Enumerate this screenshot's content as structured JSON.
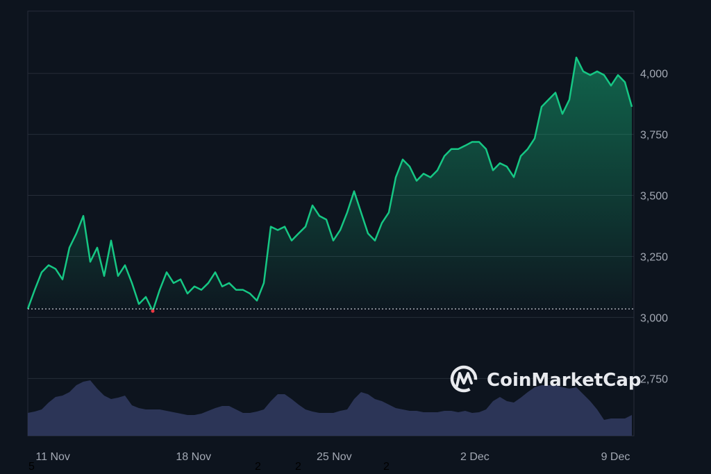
{
  "chart_data": {
    "type": "line",
    "watermark": "CoinMarketCap",
    "xlim": [
      "Nov 9 18:00",
      "Dec 9 22:00"
    ],
    "x_ticks": [
      {
        "label": "11 Nov",
        "day": 11,
        "month": "Nov"
      },
      {
        "label": "18 Nov",
        "day": 18,
        "month": "Nov"
      },
      {
        "label": "25 Nov",
        "day": 25,
        "month": "Nov"
      },
      {
        "label": "2 Dec",
        "day": 2,
        "month": "Dec"
      },
      {
        "label": "9 Dec",
        "day": 9,
        "month": "Dec"
      }
    ],
    "y_ticks": [
      "4,000",
      "3,750",
      "3,500",
      "3,250",
      "3,000",
      "2,750"
    ],
    "y_tick_values": [
      4000,
      3750,
      3500,
      3250,
      3000,
      2750
    ],
    "ylim": [
      2515,
      4255
    ],
    "grid": "horizontal",
    "baseline": 3035,
    "colors": {
      "up": "#16c784",
      "down": "#ea3943",
      "volume": "#2c3557",
      "grid": "#262d39",
      "background": "#0d141e"
    },
    "price": [
      3035,
      3113,
      3185,
      3214,
      3199,
      3156,
      3286,
      3344,
      3416,
      3228,
      3286,
      3170,
      3315,
      3170,
      3214,
      3141,
      3055,
      3084,
      3026,
      3113,
      3185,
      3141,
      3156,
      3098,
      3127,
      3113,
      3141,
      3185,
      3127,
      3141,
      3113,
      3113,
      3098,
      3069,
      3141,
      3372,
      3358,
      3372,
      3315,
      3344,
      3372,
      3459,
      3416,
      3401,
      3315,
      3358,
      3430,
      3517,
      3430,
      3344,
      3315,
      3387,
      3430,
      3574,
      3647,
      3618,
      3560,
      3589,
      3574,
      3603,
      3661,
      3690,
      3690,
      3704,
      3719,
      3719,
      3690,
      3603,
      3632,
      3618,
      3575,
      3661,
      3690,
      3733,
      3863,
      3892,
      3921,
      3834,
      3892,
      4065,
      4008,
      3993,
      4008,
      3993,
      3950,
      3993,
      3964,
      3863
    ],
    "volume_relative": [
      33,
      35,
      38,
      48,
      56,
      58,
      63,
      73,
      78,
      80,
      68,
      58,
      53,
      55,
      58,
      44,
      40,
      38,
      38,
      38,
      36,
      34,
      32,
      30,
      30,
      32,
      36,
      40,
      43,
      43,
      38,
      33,
      33,
      35,
      38,
      50,
      60,
      60,
      53,
      45,
      38,
      35,
      33,
      33,
      33,
      36,
      38,
      53,
      63,
      60,
      53,
      50,
      45,
      40,
      38,
      36,
      36,
      34,
      34,
      34,
      36,
      36,
      34,
      36,
      33,
      34,
      38,
      50,
      56,
      50,
      48,
      55,
      63,
      70,
      73,
      73,
      73,
      70,
      68,
      70,
      60,
      50,
      38,
      23,
      25,
      25,
      25,
      30
    ]
  },
  "stray_marks": [
    "5",
    "2",
    "2",
    "2"
  ]
}
